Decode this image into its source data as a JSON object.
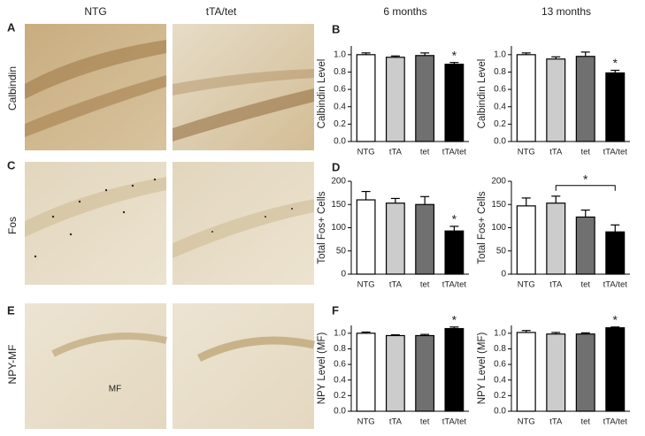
{
  "column_headers": [
    "NTG",
    "tTA/tet",
    "6 months",
    "13 months"
  ],
  "panel_letters": [
    "A",
    "B",
    "C",
    "D",
    "E",
    "F"
  ],
  "row_labels": [
    "Calbindin",
    "Fos",
    "NPY-MF"
  ],
  "image_label": "MF",
  "chart_data": [
    {
      "type": "bar",
      "ylabel": "Calbindin Level",
      "categories": [
        "NTG",
        "tTA",
        "tet",
        "tTA/tet"
      ],
      "values": [
        1.0,
        0.97,
        0.99,
        0.89
      ],
      "errors": [
        0.02,
        0.015,
        0.03,
        0.02
      ],
      "colors": [
        "#ffffff",
        "#cccccc",
        "#707070",
        "#000000"
      ],
      "ylim": [
        0,
        1.1
      ],
      "yticks": [
        {
          "value": 0,
          "label": "0.0"
        },
        0.2,
        0.4,
        0.6,
        0.8,
        {
          "value": 1,
          "label": "1.0"
        }
      ],
      "annotation": {
        "text": "*",
        "category": "tTA/tet"
      }
    },
    {
      "type": "bar",
      "ylabel": "Calbindin Level",
      "categories": [
        "NTG",
        "tTA",
        "tet",
        "tTA/tet"
      ],
      "values": [
        1.0,
        0.95,
        0.98,
        0.79
      ],
      "errors": [
        0.02,
        0.025,
        0.05,
        0.03
      ],
      "colors": [
        "#ffffff",
        "#cccccc",
        "#707070",
        "#000000"
      ],
      "ylim": [
        0,
        1.1
      ],
      "yticks": [
        {
          "value": 0,
          "label": "0.0"
        },
        0.2,
        0.4,
        0.6,
        0.8,
        {
          "value": 1,
          "label": "1.0"
        }
      ],
      "annotation": {
        "text": "*",
        "category": "tTA/tet"
      }
    },
    {
      "type": "bar",
      "ylabel": "Total  Fos+ Cells",
      "categories": [
        "NTG",
        "tTA",
        "tet",
        "tTA/tet"
      ],
      "values": [
        160,
        153,
        150,
        93
      ],
      "errors": [
        18,
        10,
        17,
        10
      ],
      "colors": [
        "#ffffff",
        "#cccccc",
        "#707070",
        "#000000"
      ],
      "ylim": [
        0,
        200
      ],
      "yticks": [
        0,
        50,
        100,
        150,
        200
      ],
      "annotation": {
        "text": "*",
        "category": "tTA/tet"
      }
    },
    {
      "type": "bar",
      "ylabel": "Total  Fos+ Cells",
      "categories": [
        "NTG",
        "tTA",
        "tet",
        "tTA/tet"
      ],
      "values": [
        147,
        153,
        123,
        91
      ],
      "errors": [
        17,
        15,
        15,
        15
      ],
      "colors": [
        "#ffffff",
        "#cccccc",
        "#707070",
        "#000000"
      ],
      "ylim": [
        0,
        200
      ],
      "yticks": [
        0,
        50,
        100,
        150,
        200
      ],
      "annotation": {
        "text": "*",
        "from": "tTA",
        "to": "tTA/tet"
      }
    },
    {
      "type": "bar",
      "ylabel": "NPY Level (MF)",
      "categories": [
        "NTG",
        "tTA",
        "tet",
        "tTA/tet"
      ],
      "values": [
        1.0,
        0.97,
        0.97,
        1.06
      ],
      "errors": [
        0.015,
        0.01,
        0.015,
        0.02
      ],
      "colors": [
        "#ffffff",
        "#cccccc",
        "#707070",
        "#000000"
      ],
      "ylim": [
        0,
        1.1
      ],
      "yticks": [
        {
          "value": 0,
          "label": "0.0"
        },
        0.2,
        0.4,
        0.6,
        0.8,
        {
          "value": 1,
          "label": "1.0"
        }
      ],
      "annotation": {
        "text": "*",
        "category": "tTA/tet"
      }
    },
    {
      "type": "bar",
      "ylabel": "NPY Level (MF)",
      "categories": [
        "NTG",
        "tTA",
        "tet",
        "tTA/tet"
      ],
      "values": [
        1.01,
        0.99,
        0.99,
        1.07
      ],
      "errors": [
        0.025,
        0.02,
        0.015,
        0.01
      ],
      "colors": [
        "#ffffff",
        "#cccccc",
        "#707070",
        "#000000"
      ],
      "ylim": [
        0,
        1.1
      ],
      "yticks": [
        {
          "value": 0,
          "label": "0.0"
        },
        0.2,
        0.4,
        0.6,
        0.8,
        {
          "value": 1,
          "label": "1.0"
        }
      ],
      "annotation": {
        "text": "*",
        "category": "tTA/tet"
      }
    }
  ]
}
